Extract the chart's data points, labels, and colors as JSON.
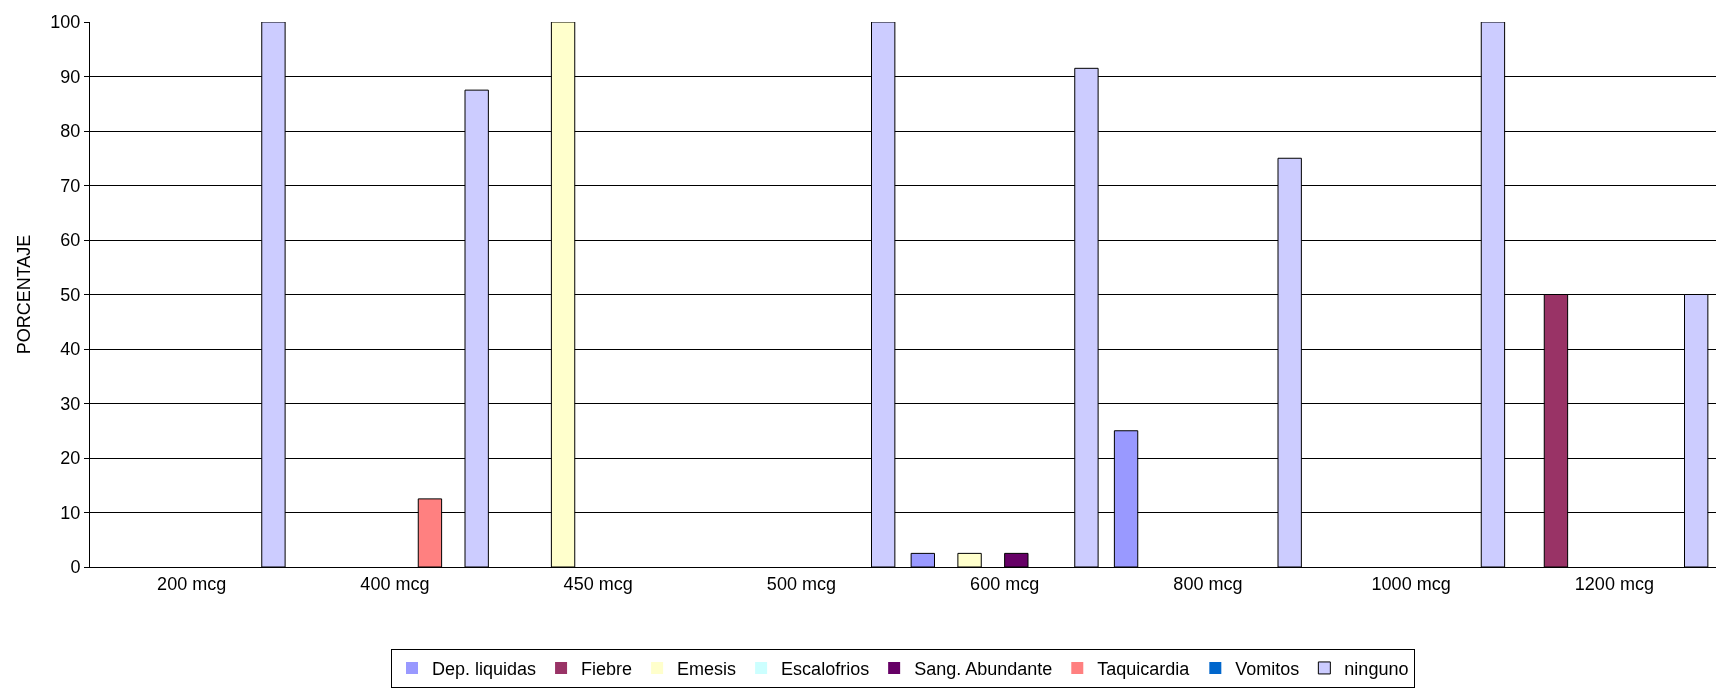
{
  "chart_data": {
    "type": "bar",
    "ylabel": "PORCENTAJE",
    "categories": [
      "200 mcg",
      "400 mcg",
      "450 mcg",
      "500 mcg",
      "600 mcg",
      "800 mcg",
      "1000 mcg",
      "1200 mcg"
    ],
    "series": [
      {
        "name": "Dep. liquidas",
        "color": "#9999ff",
        "values": [
          0,
          0,
          0,
          0,
          2.5,
          25,
          0,
          0
        ]
      },
      {
        "name": "Fiebre",
        "color": "#993366",
        "values": [
          0,
          0,
          0,
          0,
          0,
          0,
          0,
          50
        ]
      },
      {
        "name": "Emesis",
        "color": "#ffffcc",
        "values": [
          0,
          0,
          100,
          0,
          2.5,
          0,
          0,
          0
        ]
      },
      {
        "name": "Escalofrios",
        "color": "#ccffff",
        "values": [
          0,
          0,
          0,
          0,
          0,
          0,
          0,
          0
        ]
      },
      {
        "name": "Sang. Abundante",
        "color": "#660066",
        "values": [
          0,
          0,
          0,
          0,
          2.5,
          0,
          0,
          0
        ]
      },
      {
        "name": "Taquicardia",
        "color": "#ff8080",
        "values": [
          0,
          12.5,
          0,
          0,
          0,
          0,
          0,
          0
        ]
      },
      {
        "name": "Vomitos",
        "color": "#0066cc",
        "values": [
          0,
          0,
          0,
          0,
          0,
          0,
          0,
          0
        ]
      },
      {
        "name": "ninguno",
        "color": "#ccccff",
        "values": [
          100,
          87.5,
          0,
          100,
          91.5,
          75,
          100,
          50
        ]
      }
    ],
    "ylim": [
      0,
      100
    ],
    "yticks": [
      0,
      10,
      20,
      30,
      40,
      50,
      60,
      70,
      80,
      90,
      100
    ],
    "grid": "y",
    "legend": "bottom"
  }
}
